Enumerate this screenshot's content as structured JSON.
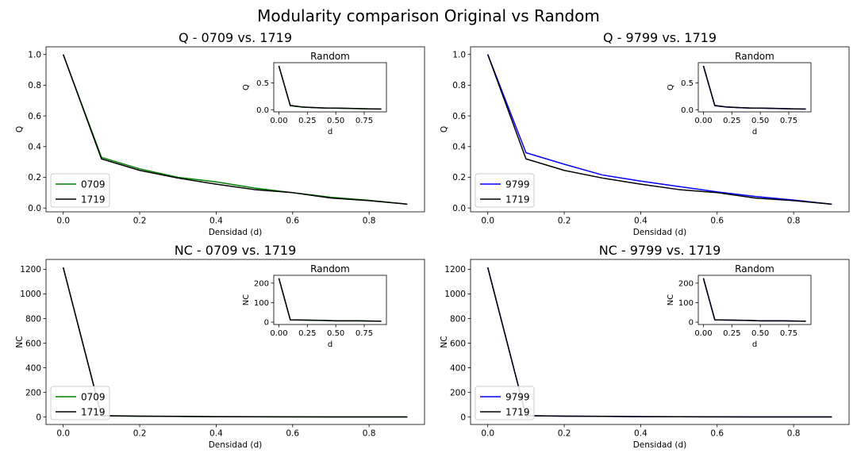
{
  "figure": {
    "title": "Modularity comparison Original vs Random"
  },
  "chart_data": [
    {
      "type": "line",
      "title": "Q - 0709 vs. 1719",
      "xlabel": "Densidad (d)",
      "ylabel": "Q",
      "xlim": [
        -0.045,
        0.945
      ],
      "ylim": [
        -0.025,
        1.05
      ],
      "xticks": [
        0.0,
        0.2,
        0.4,
        0.6,
        0.8
      ],
      "yticks": [
        0.0,
        0.2,
        0.4,
        0.6,
        0.8,
        1.0
      ],
      "tick_labels_x": [
        "0.0",
        "0.2",
        "0.4",
        "0.6",
        "0.8"
      ],
      "tick_labels_y": [
        "0.0",
        "0.2",
        "0.4",
        "0.6",
        "0.8",
        "1.0"
      ],
      "legend": "lower-left",
      "x": [
        0.0,
        0.1,
        0.2,
        0.3,
        0.4,
        0.5,
        0.6,
        0.7,
        0.8,
        0.9
      ],
      "series": [
        {
          "name": "0709",
          "color": "#008000",
          "values": [
            1.0,
            0.33,
            0.255,
            0.2,
            0.17,
            0.13,
            0.1,
            0.07,
            0.05,
            0.025
          ]
        },
        {
          "name": "1719",
          "color": "#000000",
          "values": [
            1.0,
            0.32,
            0.245,
            0.195,
            0.155,
            0.12,
            0.1,
            0.065,
            0.048,
            0.025
          ]
        }
      ],
      "inset": {
        "title": "Random",
        "xlabel": "d",
        "ylabel": "Q",
        "xlim": [
          -0.045,
          0.945
        ],
        "ylim": [
          -0.04,
          0.88
        ],
        "xticks": [
          0.0,
          0.25,
          0.5,
          0.75
        ],
        "yticks": [
          0.0,
          0.5
        ],
        "tick_labels_x": [
          "0.00",
          "0.25",
          "0.50",
          "0.75"
        ],
        "tick_labels_y": [
          "0.0",
          "0.5"
        ],
        "x": [
          0.0,
          0.1,
          0.2,
          0.3,
          0.4,
          0.5,
          0.6,
          0.7,
          0.8,
          0.9
        ],
        "series": [
          {
            "color": "#008000",
            "values": [
              0.82,
              0.075,
              0.05,
              0.04,
              0.032,
              0.028,
              0.025,
              0.02,
              0.015,
              0.012
            ]
          },
          {
            "color": "#000000",
            "values": [
              0.82,
              0.08,
              0.052,
              0.042,
              0.033,
              0.03,
              0.026,
              0.021,
              0.016,
              0.013
            ]
          }
        ]
      }
    },
    {
      "type": "line",
      "title": "Q - 9799 vs. 1719",
      "xlabel": "Densidad (d)",
      "ylabel": "Q",
      "xlim": [
        -0.045,
        0.945
      ],
      "ylim": [
        -0.025,
        1.05
      ],
      "xticks": [
        0.0,
        0.2,
        0.4,
        0.6,
        0.8
      ],
      "yticks": [
        0.0,
        0.2,
        0.4,
        0.6,
        0.8,
        1.0
      ],
      "tick_labels_x": [
        "0.0",
        "0.2",
        "0.4",
        "0.6",
        "0.8"
      ],
      "tick_labels_y": [
        "0.0",
        "0.2",
        "0.4",
        "0.6",
        "0.8",
        "1.0"
      ],
      "legend": "lower-left",
      "x": [
        0.0,
        0.1,
        0.2,
        0.3,
        0.4,
        0.5,
        0.6,
        0.7,
        0.8,
        0.9
      ],
      "series": [
        {
          "name": "9799",
          "color": "#0000ff",
          "values": [
            1.0,
            0.36,
            0.285,
            0.215,
            0.175,
            0.14,
            0.105,
            0.075,
            0.052,
            0.025
          ]
        },
        {
          "name": "1719",
          "color": "#000000",
          "values": [
            1.0,
            0.32,
            0.245,
            0.195,
            0.155,
            0.12,
            0.1,
            0.065,
            0.048,
            0.025
          ]
        }
      ],
      "inset": {
        "title": "Random",
        "xlabel": "d",
        "ylabel": "Q",
        "xlim": [
          -0.045,
          0.945
        ],
        "ylim": [
          -0.04,
          0.88
        ],
        "xticks": [
          0.0,
          0.25,
          0.5,
          0.75
        ],
        "yticks": [
          0.0,
          0.5
        ],
        "tick_labels_x": [
          "0.00",
          "0.25",
          "0.50",
          "0.75"
        ],
        "tick_labels_y": [
          "0.0",
          "0.5"
        ],
        "x": [
          0.0,
          0.1,
          0.2,
          0.3,
          0.4,
          0.5,
          0.6,
          0.7,
          0.8,
          0.9
        ],
        "series": [
          {
            "color": "#0000ff",
            "values": [
              0.82,
              0.075,
              0.05,
              0.04,
              0.032,
              0.028,
              0.025,
              0.02,
              0.015,
              0.012
            ]
          },
          {
            "color": "#000000",
            "values": [
              0.82,
              0.08,
              0.052,
              0.042,
              0.033,
              0.03,
              0.026,
              0.021,
              0.016,
              0.013
            ]
          }
        ]
      }
    },
    {
      "type": "line",
      "title": "NC - 0709 vs. 1719",
      "xlabel": "Densidad (d)",
      "ylabel": "NC",
      "xlim": [
        -0.045,
        0.945
      ],
      "ylim": [
        -60,
        1280
      ],
      "xticks": [
        0.0,
        0.2,
        0.4,
        0.6,
        0.8
      ],
      "yticks": [
        0,
        200,
        400,
        600,
        800,
        1000,
        1200
      ],
      "tick_labels_x": [
        "0.0",
        "0.2",
        "0.4",
        "0.6",
        "0.8"
      ],
      "tick_labels_y": [
        "0",
        "200",
        "400",
        "600",
        "800",
        "1000",
        "1200"
      ],
      "legend": "lower-left",
      "x": [
        0.0,
        0.1,
        0.2,
        0.3,
        0.4,
        0.5,
        0.6,
        0.7,
        0.8,
        0.9
      ],
      "series": [
        {
          "name": "0709",
          "color": "#008000",
          "values": [
            1215,
            10,
            7,
            5,
            3,
            2,
            1,
            1,
            1,
            1
          ]
        },
        {
          "name": "1719",
          "color": "#000000",
          "values": [
            1215,
            12,
            8,
            6,
            4,
            3,
            2,
            1,
            1,
            1
          ]
        }
      ],
      "inset": {
        "title": "Random",
        "xlabel": "d",
        "ylabel": "NC",
        "xlim": [
          -0.045,
          0.945
        ],
        "ylim": [
          -12,
          240
        ],
        "xticks": [
          0.0,
          0.25,
          0.5,
          0.75
        ],
        "yticks": [
          0,
          100,
          200
        ],
        "tick_labels_x": [
          "0.00",
          "0.25",
          "0.50",
          "0.75"
        ],
        "tick_labels_y": [
          "0",
          "100",
          "200"
        ],
        "x": [
          0.0,
          0.1,
          0.2,
          0.3,
          0.4,
          0.5,
          0.6,
          0.7,
          0.8,
          0.9
        ],
        "series": [
          {
            "color": "#008000",
            "values": [
              225,
              12,
              11,
              10,
              9,
              7,
              7,
              7,
              6,
              5
            ]
          },
          {
            "color": "#000000",
            "values": [
              225,
              12,
              11,
              10,
              9,
              7,
              7,
              7,
              6,
              5
            ]
          }
        ]
      }
    },
    {
      "type": "line",
      "title": "NC - 9799 vs. 1719",
      "xlabel": "Densidad (d)",
      "ylabel": "NC",
      "xlim": [
        -0.045,
        0.945
      ],
      "ylim": [
        -60,
        1280
      ],
      "xticks": [
        0.0,
        0.2,
        0.4,
        0.6,
        0.8
      ],
      "yticks": [
        0,
        200,
        400,
        600,
        800,
        1000,
        1200
      ],
      "tick_labels_x": [
        "0.0",
        "0.2",
        "0.4",
        "0.6",
        "0.8"
      ],
      "tick_labels_y": [
        "0",
        "200",
        "400",
        "600",
        "800",
        "1000",
        "1200"
      ],
      "legend": "lower-left",
      "x": [
        0.0,
        0.1,
        0.2,
        0.3,
        0.4,
        0.5,
        0.6,
        0.7,
        0.8,
        0.9
      ],
      "series": [
        {
          "name": "9799",
          "color": "#0000ff",
          "values": [
            1215,
            11,
            8,
            6,
            4,
            3,
            2,
            1,
            1,
            1
          ]
        },
        {
          "name": "1719",
          "color": "#000000",
          "values": [
            1215,
            12,
            8,
            6,
            4,
            3,
            2,
            1,
            1,
            1
          ]
        }
      ],
      "inset": {
        "title": "Random",
        "xlabel": "d",
        "ylabel": "NC",
        "xlim": [
          -0.045,
          0.945
        ],
        "ylim": [
          -12,
          240
        ],
        "xticks": [
          0.0,
          0.25,
          0.5,
          0.75
        ],
        "yticks": [
          0,
          100,
          200
        ],
        "tick_labels_x": [
          "0.00",
          "0.25",
          "0.50",
          "0.75"
        ],
        "tick_labels_y": [
          "0",
          "100",
          "200"
        ],
        "x": [
          0.0,
          0.1,
          0.2,
          0.3,
          0.4,
          0.5,
          0.6,
          0.7,
          0.8,
          0.9
        ],
        "series": [
          {
            "color": "#0000ff",
            "values": [
              225,
              12,
              11,
              10,
              9,
              7,
              7,
              7,
              6,
              5
            ]
          },
          {
            "color": "#000000",
            "values": [
              225,
              12,
              11,
              10,
              9,
              7,
              7,
              7,
              6,
              5
            ]
          }
        ]
      }
    }
  ]
}
